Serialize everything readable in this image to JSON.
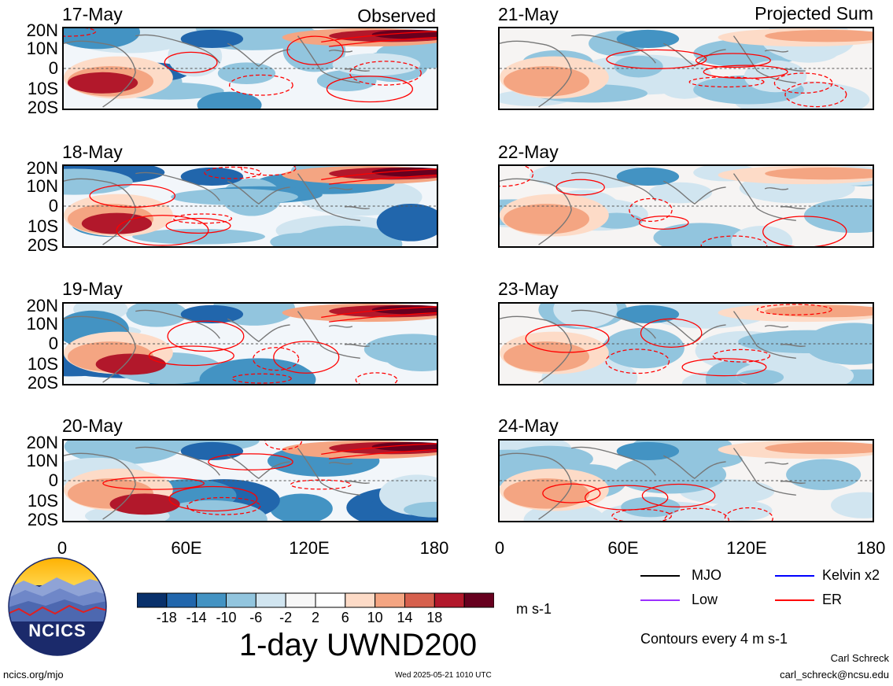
{
  "observed_label": "Observed",
  "projected_label": "Projected Sum",
  "panels": [
    {
      "date": "17-May",
      "column": "observed"
    },
    {
      "date": "18-May",
      "column": "observed"
    },
    {
      "date": "19-May",
      "column": "observed"
    },
    {
      "date": "20-May",
      "column": "observed"
    },
    {
      "date": "21-May",
      "column": "projected"
    },
    {
      "date": "22-May",
      "column": "projected"
    },
    {
      "date": "23-May",
      "column": "projected"
    },
    {
      "date": "24-May",
      "column": "projected"
    }
  ],
  "lat_ticks": [
    "20N",
    "10N",
    "0",
    "10S",
    "20S"
  ],
  "lon_ticks": [
    "0",
    "60E",
    "120E",
    "180"
  ],
  "colorbar": {
    "colors": [
      "#08306b",
      "#2166ac",
      "#4393c3",
      "#92c5de",
      "#d1e5f0",
      "#f7f7f7",
      "#ffffff",
      "#fddbc7",
      "#f4a582",
      "#d6604d",
      "#b2182b",
      "#67001f"
    ],
    "tick_labels": [
      "-18",
      "-14",
      "-10",
      "-6",
      "-2",
      "2",
      "6",
      "10",
      "14",
      "18"
    ],
    "units": "m s-1"
  },
  "title": "1-day UWND200",
  "legend": [
    {
      "label": "MJO",
      "color": "#000000"
    },
    {
      "label": "Kelvin x2",
      "color": "#0000ff"
    },
    {
      "label": "Low",
      "color": "#9b30ff"
    },
    {
      "label": "ER",
      "color": "#ff0000"
    }
  ],
  "contour_note": "Contours every 4 m s-1",
  "logo_text": "NCICS",
  "footer_left": "ncics.org/mjo",
  "footer_timestamp": "Wed 2025-05-21 1010 UTC",
  "author_name": "Carl Schreck",
  "author_email": "carl_schreck@ncsu.edu"
}
